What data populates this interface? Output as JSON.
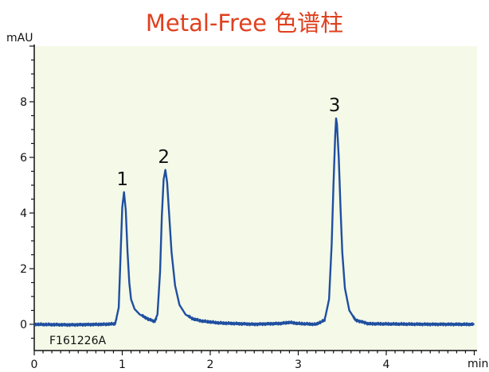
{
  "colors": {
    "plot_background": "#f4f9e8",
    "trace": "#1f4fa0",
    "title": "#e0401e",
    "axis": "#111111"
  },
  "chart_data": {
    "type": "line",
    "title": "Metal-Free 色谱柱",
    "ylabel": "mAU",
    "xlabel": "min",
    "xlim": [
      0,
      5
    ],
    "ylim": [
      -0.8,
      10.2
    ],
    "x_ticks": [
      0,
      1,
      2,
      3,
      4
    ],
    "y_ticks": [
      0,
      2,
      4,
      6,
      8
    ],
    "grid": false,
    "annotation": "F161226A",
    "peaks": [
      {
        "label": "1",
        "retention_time_min": 1.02,
        "height_mAU": 4.75
      },
      {
        "label": "2",
        "retention_time_min": 1.49,
        "height_mAU": 5.55
      },
      {
        "label": "3",
        "retention_time_min": 3.43,
        "height_mAU": 7.4
      }
    ],
    "series": [
      {
        "x": [
          0.0,
          0.4,
          0.8,
          0.92,
          0.96,
          0.98,
          1.0,
          1.02,
          1.04,
          1.06,
          1.08,
          1.1,
          1.14,
          1.2,
          1.3,
          1.37,
          1.4,
          1.43,
          1.45,
          1.47,
          1.49,
          1.51,
          1.53,
          1.56,
          1.6,
          1.65,
          1.72,
          1.8,
          1.9,
          2.1,
          2.5,
          2.8,
          2.9,
          3.0,
          3.2,
          3.3,
          3.35,
          3.38,
          3.4,
          3.42,
          3.43,
          3.44,
          3.46,
          3.48,
          3.5,
          3.53,
          3.58,
          3.65,
          3.8,
          4.5,
          5.0
        ],
        "y": [
          0.0,
          -0.02,
          0.0,
          0.02,
          0.6,
          2.4,
          4.2,
          4.75,
          4.1,
          2.6,
          1.5,
          0.9,
          0.55,
          0.35,
          0.18,
          0.1,
          0.35,
          1.9,
          3.9,
          5.2,
          5.55,
          5.1,
          4.1,
          2.6,
          1.4,
          0.7,
          0.35,
          0.2,
          0.12,
          0.05,
          0.0,
          0.03,
          0.07,
          0.03,
          0.0,
          0.15,
          0.9,
          2.9,
          5.0,
          6.8,
          7.4,
          7.2,
          6.0,
          4.2,
          2.6,
          1.3,
          0.5,
          0.15,
          0.02,
          0.0,
          0.0
        ]
      }
    ]
  }
}
